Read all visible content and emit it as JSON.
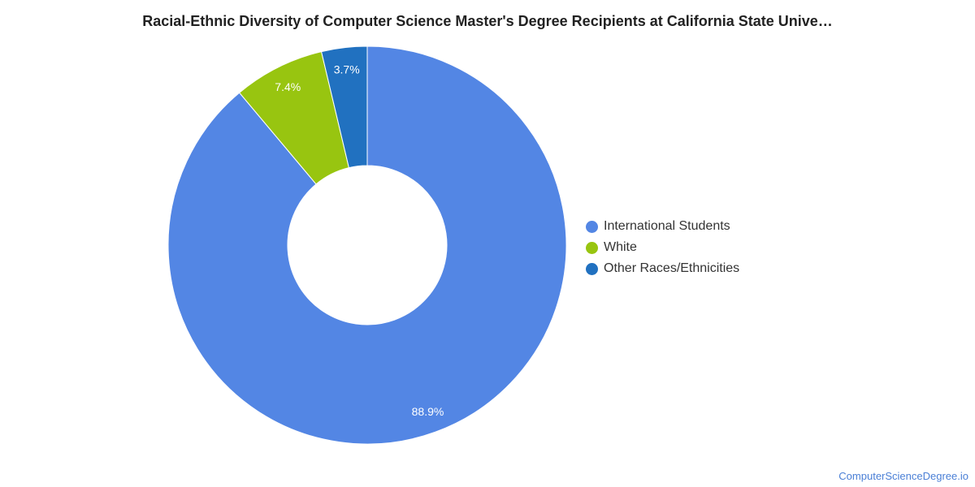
{
  "title": "Racial-Ethnic Diversity of Computer Science Master's Degree Recipients at California State Unive…",
  "credit": "ComputerScienceDegree.io",
  "chart_data": {
    "type": "pie",
    "donut": true,
    "slices": [
      {
        "name": "International Students",
        "value": 88.9,
        "label": "88.9%",
        "color": "#5386e4"
      },
      {
        "name": "White",
        "value": 7.4,
        "label": "7.4%",
        "color": "#98c510"
      },
      {
        "name": "Other Races/Ethnicities",
        "value": 3.7,
        "label": "3.7%",
        "color": "#2171c0"
      }
    ],
    "legend_position": "right"
  }
}
